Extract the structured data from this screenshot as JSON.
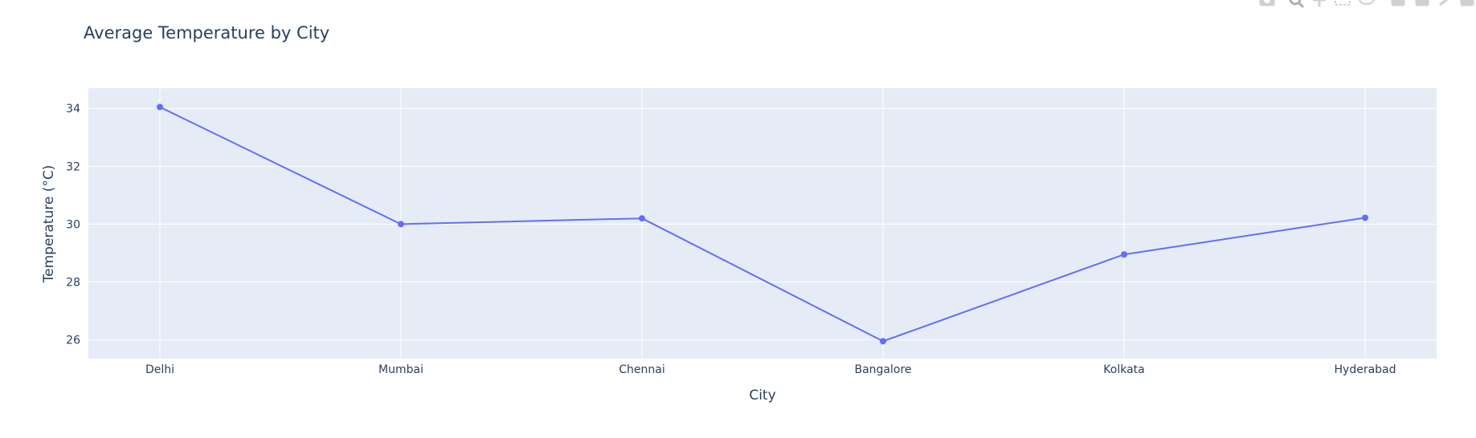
{
  "chart_data": {
    "type": "line",
    "title": "Average Temperature by City",
    "xlabel": "City",
    "ylabel": "Temperature (°C)",
    "categories": [
      "Delhi",
      "Mumbai",
      "Chennai",
      "Bangalore",
      "Kolkata",
      "Hyderabad"
    ],
    "series": [
      {
        "values": [
          34.05,
          30.0,
          30.2,
          25.95,
          28.95,
          30.22
        ],
        "color": "#636efa",
        "mode": "lines+markers"
      }
    ],
    "ylim": [
      25.35,
      34.7
    ],
    "yticks": [
      26,
      28,
      30,
      32,
      34
    ],
    "grid": true,
    "plot_background": "#e5ecf6",
    "grid_color": "#ffffff",
    "text_color": "#2a3f5f",
    "legend": "none"
  },
  "modebar": {
    "icons": [
      "camera-icon",
      "zoom-icon",
      "pan-icon",
      "box-select-icon",
      "lasso-icon",
      "zoom-in-icon",
      "zoom-out-icon",
      "autoscale-icon",
      "reset-axes-icon"
    ],
    "color": "#d0d0d0"
  }
}
